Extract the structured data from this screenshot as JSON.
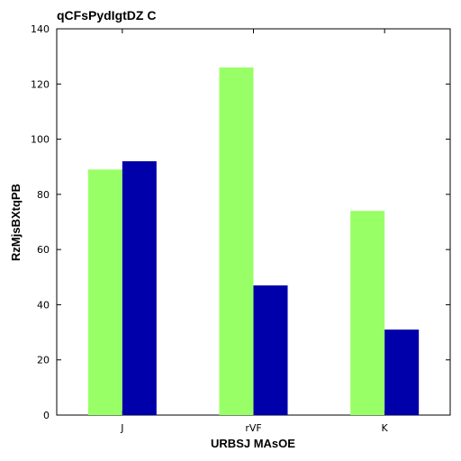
{
  "chart_data": {
    "type": "bar",
    "title": "qCFsPydIgtDZ C",
    "xlabel": "URBSJ MAsOE",
    "ylabel": "RzMjsBXtqPB",
    "categories": [
      "J",
      "rVF",
      "K"
    ],
    "series": [
      {
        "color": "#99ff66",
        "values": [
          89,
          126,
          74
        ]
      },
      {
        "color": "#0000aa",
        "values": [
          92,
          47,
          31
        ]
      }
    ],
    "ylim": [
      0,
      140
    ],
    "yticks": [
      0,
      20,
      40,
      60,
      80,
      100,
      120,
      140
    ],
    "grid": false,
    "legend": "none"
  }
}
